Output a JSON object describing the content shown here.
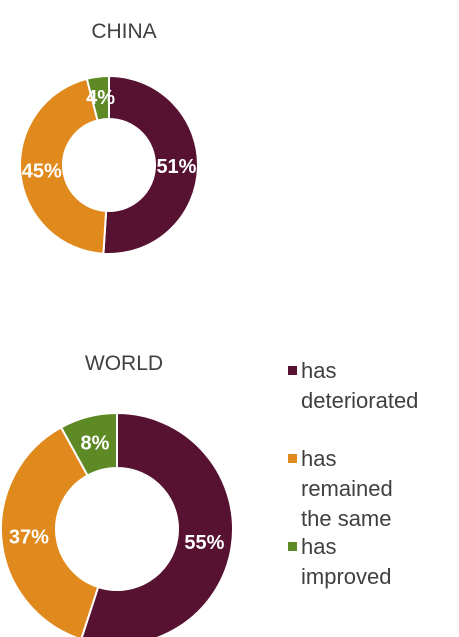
{
  "chart_data": [
    {
      "type": "pie",
      "title": "CHINA",
      "categories": [
        "has deteriorated",
        "has remained the same",
        "has improved"
      ],
      "values": [
        51,
        45,
        4
      ],
      "labels": [
        "51%",
        "45%",
        "4%"
      ]
    },
    {
      "type": "pie",
      "title": "WORLD",
      "categories": [
        "has deteriorated",
        "has remained the same",
        "has improved"
      ],
      "values": [
        55,
        37,
        8
      ],
      "labels": [
        "55%",
        "37%",
        "8%"
      ]
    }
  ],
  "legend": {
    "placement": "right",
    "items": [
      {
        "lines": [
          "has",
          "deteriorated"
        ],
        "color": "#561230"
      },
      {
        "lines": [
          "has",
          "remained",
          "the same"
        ],
        "color": "#E0891D"
      },
      {
        "lines": [
          "has",
          "improved"
        ],
        "color": "#5E8A26"
      }
    ]
  },
  "colors": [
    "#561230",
    "#E0891D",
    "#5E8A26"
  ]
}
